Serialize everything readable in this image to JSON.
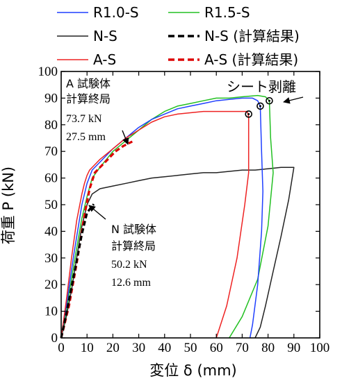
{
  "chart_data": {
    "type": "line",
    "xlabel": "変位 δ (mm)",
    "ylabel": "荷重 P (kN)",
    "xlim": [
      0,
      100
    ],
    "ylim": [
      0,
      100
    ],
    "x_ticks": [
      0,
      10,
      20,
      30,
      40,
      50,
      60,
      70,
      80,
      90,
      100
    ],
    "y_ticks": [
      0,
      10,
      20,
      30,
      40,
      50,
      60,
      70,
      80,
      90,
      100
    ],
    "grid": false,
    "legend_position": "top",
    "colors": {
      "R1.0-S": "#1f3fff",
      "R1.5-S": "#22c022",
      "N-S": "#222222",
      "A-S": "#ee2222",
      "N-S (計算結果)": "#000000",
      "A-S (計算結果)": "#dd0000"
    },
    "legend": [
      {
        "name": "R1.0-S",
        "color": "#1f3fff",
        "dash": false
      },
      {
        "name": "R1.5-S",
        "color": "#22c022",
        "dash": false
      },
      {
        "name": "N-S",
        "color": "#222222",
        "dash": false
      },
      {
        "name": "N-S (計算結果)",
        "color": "#000000",
        "dash": true
      },
      {
        "name": "A-S",
        "color": "#ee2222",
        "dash": false
      },
      {
        "name": "A-S (計算結果)",
        "color": "#dd0000",
        "dash": true
      }
    ],
    "series": [
      {
        "name": "R1.0-S",
        "dash": false,
        "points": [
          [
            0,
            0
          ],
          [
            2,
            12
          ],
          [
            5,
            32
          ],
          [
            8,
            50
          ],
          [
            10,
            58
          ],
          [
            12,
            63
          ],
          [
            15,
            66
          ],
          [
            20,
            71
          ],
          [
            25,
            75
          ],
          [
            30,
            79
          ],
          [
            35,
            82
          ],
          [
            40,
            84
          ],
          [
            45,
            86
          ],
          [
            50,
            87
          ],
          [
            55,
            88
          ],
          [
            60,
            89
          ],
          [
            65,
            89.5
          ],
          [
            70,
            90
          ],
          [
            74,
            90
          ],
          [
            76,
            89
          ],
          [
            77,
            87
          ],
          [
            77.5,
            70
          ],
          [
            78,
            55
          ],
          [
            77.5,
            40
          ],
          [
            76,
            20
          ],
          [
            74,
            5
          ],
          [
            73,
            0
          ]
        ]
      },
      {
        "name": "R1.5-S",
        "dash": false,
        "points": [
          [
            0,
            0
          ],
          [
            2,
            10
          ],
          [
            5,
            28
          ],
          [
            8,
            45
          ],
          [
            10,
            53
          ],
          [
            12,
            60
          ],
          [
            15,
            64
          ],
          [
            20,
            70
          ],
          [
            25,
            74
          ],
          [
            30,
            78
          ],
          [
            35,
            82
          ],
          [
            40,
            85
          ],
          [
            45,
            87
          ],
          [
            50,
            88
          ],
          [
            55,
            89
          ],
          [
            60,
            90
          ],
          [
            65,
            90
          ],
          [
            70,
            90.5
          ],
          [
            76,
            91
          ],
          [
            79,
            90.5
          ],
          [
            80.5,
            89
          ],
          [
            81,
            75
          ],
          [
            82,
            62
          ],
          [
            80,
            42
          ],
          [
            76,
            22
          ],
          [
            70,
            8
          ],
          [
            65,
            0
          ]
        ]
      },
      {
        "name": "N-S",
        "dash": false,
        "points": [
          [
            0,
            0
          ],
          [
            2,
            8
          ],
          [
            4,
            18
          ],
          [
            6,
            30
          ],
          [
            8,
            42
          ],
          [
            10,
            50
          ],
          [
            12,
            54
          ],
          [
            15,
            56
          ],
          [
            20,
            57
          ],
          [
            25,
            58
          ],
          [
            30,
            59
          ],
          [
            35,
            60
          ],
          [
            40,
            60.5
          ],
          [
            45,
            61
          ],
          [
            50,
            61.5
          ],
          [
            55,
            62
          ],
          [
            60,
            62
          ],
          [
            65,
            62.5
          ],
          [
            70,
            63
          ],
          [
            75,
            63
          ],
          [
            80,
            63.5
          ],
          [
            85,
            64
          ],
          [
            90,
            64
          ],
          [
            88,
            52
          ],
          [
            85,
            38
          ],
          [
            82,
            25
          ],
          [
            79,
            12
          ],
          [
            77,
            4
          ],
          [
            75,
            0
          ]
        ]
      },
      {
        "name": "A-S",
        "dash": false,
        "points": [
          [
            0,
            0
          ],
          [
            2,
            14
          ],
          [
            4,
            30
          ],
          [
            6,
            44
          ],
          [
            8,
            54
          ],
          [
            9,
            58
          ],
          [
            10,
            61
          ],
          [
            11,
            63
          ],
          [
            13,
            65
          ],
          [
            15,
            67
          ],
          [
            20,
            71
          ],
          [
            25,
            75
          ],
          [
            30,
            78
          ],
          [
            35,
            81
          ],
          [
            40,
            83
          ],
          [
            45,
            84
          ],
          [
            50,
            84.5
          ],
          [
            55,
            85
          ],
          [
            60,
            85
          ],
          [
            65,
            85
          ],
          [
            70,
            85
          ],
          [
            72,
            85
          ],
          [
            72.5,
            83
          ],
          [
            72.5,
            75
          ],
          [
            72.5,
            62
          ],
          [
            71,
            50
          ],
          [
            68,
            30
          ],
          [
            64,
            12
          ],
          [
            60,
            0
          ]
        ]
      },
      {
        "name": "N-S (計算結果)",
        "dash": true,
        "points": [
          [
            0,
            0
          ],
          [
            2,
            9
          ],
          [
            4,
            19
          ],
          [
            6,
            29
          ],
          [
            8,
            39
          ],
          [
            10,
            47
          ],
          [
            12.6,
            50.2
          ]
        ]
      },
      {
        "name": "A-S (計算結果)",
        "dash": true,
        "points": [
          [
            0,
            0
          ],
          [
            3,
            12
          ],
          [
            6,
            28
          ],
          [
            9,
            46
          ],
          [
            11,
            56
          ],
          [
            13,
            62
          ],
          [
            15,
            64
          ],
          [
            18,
            67
          ],
          [
            21,
            70
          ],
          [
            24,
            72
          ],
          [
            27.5,
            73.7
          ]
        ]
      }
    ],
    "markers": [
      {
        "series": "R1.0-S",
        "x": 77,
        "y": 87,
        "shape": "circle"
      },
      {
        "series": "R1.5-S",
        "x": 80.5,
        "y": 89,
        "shape": "circle"
      },
      {
        "series": "A-S",
        "x": 72.5,
        "y": 84,
        "shape": "circle"
      }
    ],
    "annotations": {
      "sheet_peel": "シート剥離",
      "a_calc_lines": [
        "A 試験体",
        "計算終局",
        "73.7 kN",
        "27.5 mm"
      ],
      "n_calc_lines": [
        "N 試験体",
        "計算終局",
        "50.2 kN",
        "12.6 mm"
      ]
    }
  }
}
